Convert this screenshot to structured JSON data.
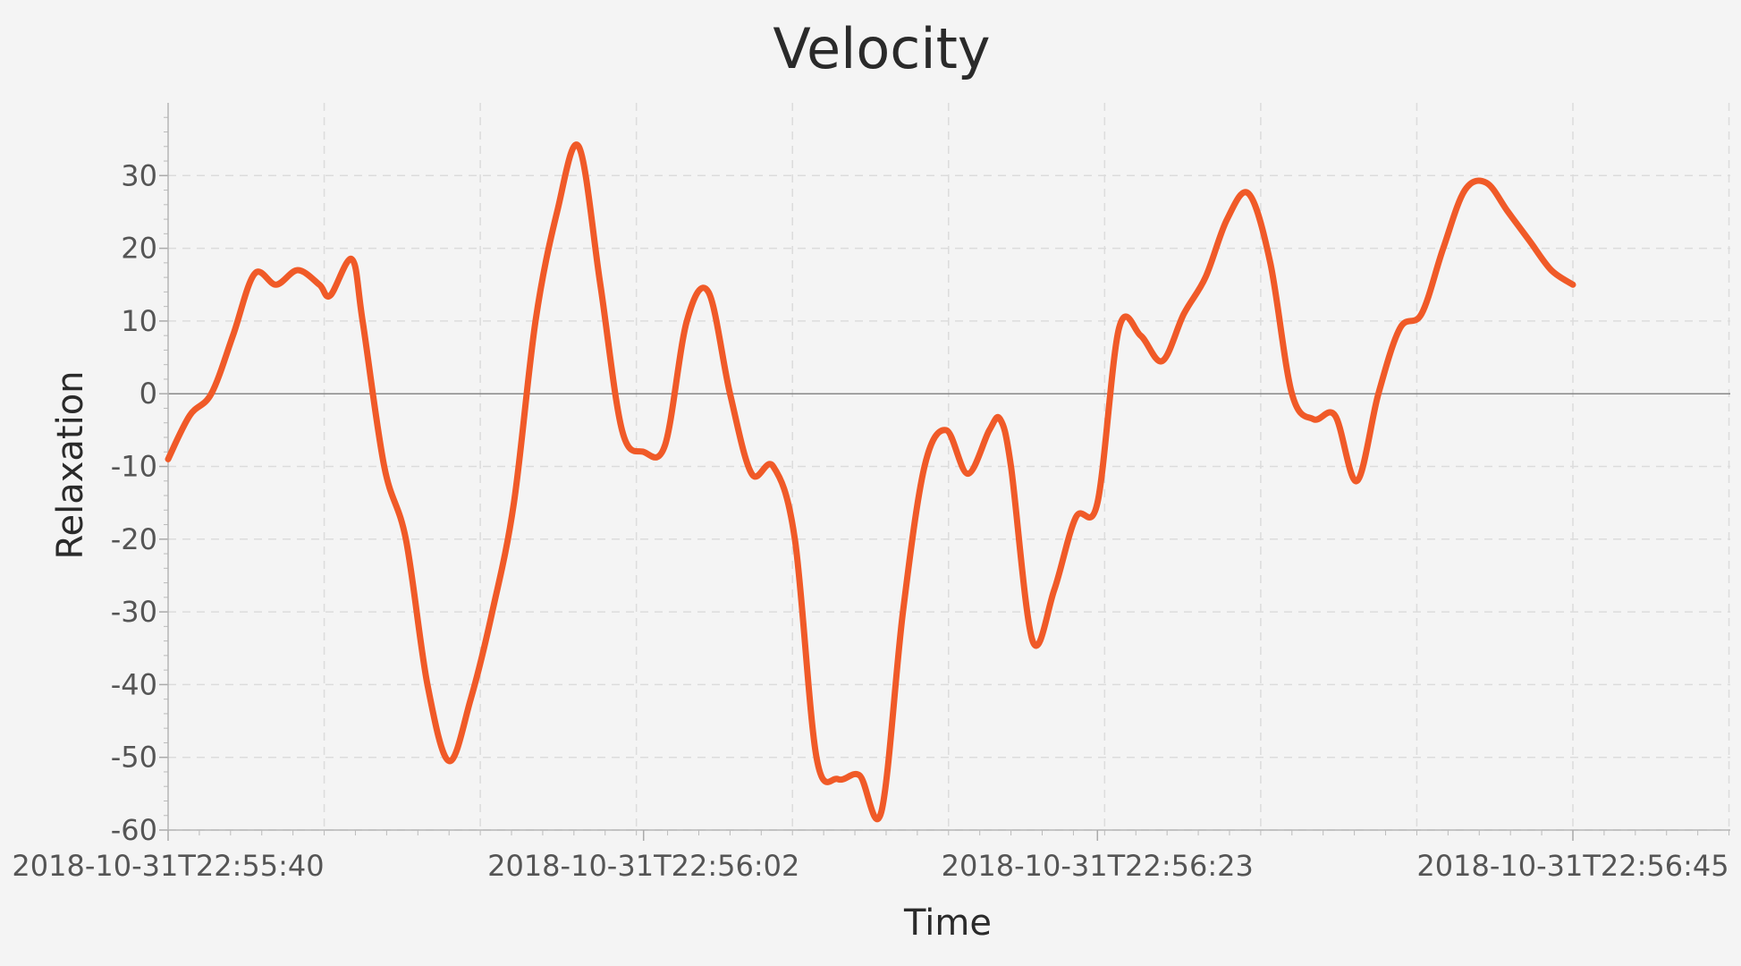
{
  "chart_data": {
    "type": "line",
    "title": "Velocity",
    "xlabel": "Time",
    "ylabel": "Relaxation",
    "x_tick_labels": [
      "2018-10-31T22:55:40",
      "2018-10-31T22:56:02",
      "2018-10-31T22:56:23",
      "2018-10-31T22:56:45"
    ],
    "y_tick_labels": [
      "30",
      "20",
      "10",
      "0",
      "-10",
      "-20",
      "-30",
      "-40",
      "-50",
      "-60"
    ],
    "ylim": [
      -60,
      40
    ],
    "xlim": [
      "2018-10-31T22:55:40",
      "2018-10-31T22:56:45"
    ],
    "grid": true,
    "zero_line": true,
    "series": [
      {
        "color": "#f05a28",
        "points": [
          [
            "2018-10-31T22:55:40",
            -9
          ],
          [
            "2018-10-31T22:55:41",
            -3
          ],
          [
            "2018-10-31T22:55:42",
            0
          ],
          [
            "2018-10-31T22:55:43",
            8
          ],
          [
            "2018-10-31T22:55:44",
            16.5
          ],
          [
            "2018-10-31T22:55:45",
            15
          ],
          [
            "2018-10-31T22:55:46",
            17
          ],
          [
            "2018-10-31T22:55:47",
            15
          ],
          [
            "2018-10-31T22:55:47.5",
            13.5
          ],
          [
            "2018-10-31T22:55:48.5",
            18.5
          ],
          [
            "2018-10-31T22:55:49",
            10
          ],
          [
            "2018-10-31T22:55:50",
            -10
          ],
          [
            "2018-10-31T22:55:51",
            -20
          ],
          [
            "2018-10-31T22:55:52",
            -40
          ],
          [
            "2018-10-31T22:55:53",
            -50.5
          ],
          [
            "2018-10-31T22:55:54",
            -42
          ],
          [
            "2018-10-31T22:55:55",
            -30
          ],
          [
            "2018-10-31T22:55:56",
            -15
          ],
          [
            "2018-10-31T22:55:57",
            10
          ],
          [
            "2018-10-31T22:55:58",
            25
          ],
          [
            "2018-10-31T22:55:59",
            34
          ],
          [
            "2018-10-31T22:56:00",
            15
          ],
          [
            "2018-10-31T22:56:01",
            -5
          ],
          [
            "2018-10-31T22:56:02",
            -8
          ],
          [
            "2018-10-31T22:56:03",
            -7
          ],
          [
            "2018-10-31T22:56:04",
            10
          ],
          [
            "2018-10-31T22:56:05",
            14
          ],
          [
            "2018-10-31T22:56:06",
            0
          ],
          [
            "2018-10-31T22:56:07",
            -11
          ],
          [
            "2018-10-31T22:56:08",
            -10
          ],
          [
            "2018-10-31T22:56:09",
            -20
          ],
          [
            "2018-10-31T22:56:10",
            -50
          ],
          [
            "2018-10-31T22:56:11",
            -53
          ],
          [
            "2018-10-31T22:56:12",
            -52.5
          ],
          [
            "2018-10-31T22:56:13",
            -57.5
          ],
          [
            "2018-10-31T22:56:14",
            -30
          ],
          [
            "2018-10-31T22:56:15",
            -10
          ],
          [
            "2018-10-31T22:56:16",
            -5
          ],
          [
            "2018-10-31T22:56:17",
            -11
          ],
          [
            "2018-10-31T22:56:18",
            -5
          ],
          [
            "2018-10-31T22:56:18.5",
            -3.5
          ],
          [
            "2018-10-31T22:56:19",
            -10
          ],
          [
            "2018-10-31T22:56:20",
            -34
          ],
          [
            "2018-10-31T22:56:21",
            -27
          ],
          [
            "2018-10-31T22:56:22",
            -17
          ],
          [
            "2018-10-31T22:56:23",
            -15
          ],
          [
            "2018-10-31T22:56:24",
            9
          ],
          [
            "2018-10-31T22:56:25",
            8
          ],
          [
            "2018-10-31T22:56:26",
            4.5
          ],
          [
            "2018-10-31T22:56:27",
            11
          ],
          [
            "2018-10-31T22:56:28",
            16
          ],
          [
            "2018-10-31T22:56:29",
            24
          ],
          [
            "2018-10-31T22:56:30",
            27.5
          ],
          [
            "2018-10-31T22:56:31",
            18
          ],
          [
            "2018-10-31T22:56:32",
            0
          ],
          [
            "2018-10-31T22:56:33",
            -3.5
          ],
          [
            "2018-10-31T22:56:34",
            -3
          ],
          [
            "2018-10-31T22:56:35",
            -12
          ],
          [
            "2018-10-31T22:56:36",
            0
          ],
          [
            "2018-10-31T22:56:37",
            9
          ],
          [
            "2018-10-31T22:56:38",
            11
          ],
          [
            "2018-10-31T22:56:39",
            20
          ],
          [
            "2018-10-31T22:56:40",
            28
          ],
          [
            "2018-10-31T22:56:41",
            29
          ],
          [
            "2018-10-31T22:56:42",
            25
          ],
          [
            "2018-10-31T22:56:43",
            21
          ],
          [
            "2018-10-31T22:56:44",
            17
          ],
          [
            "2018-10-31T22:56:45",
            15
          ]
        ]
      }
    ]
  }
}
